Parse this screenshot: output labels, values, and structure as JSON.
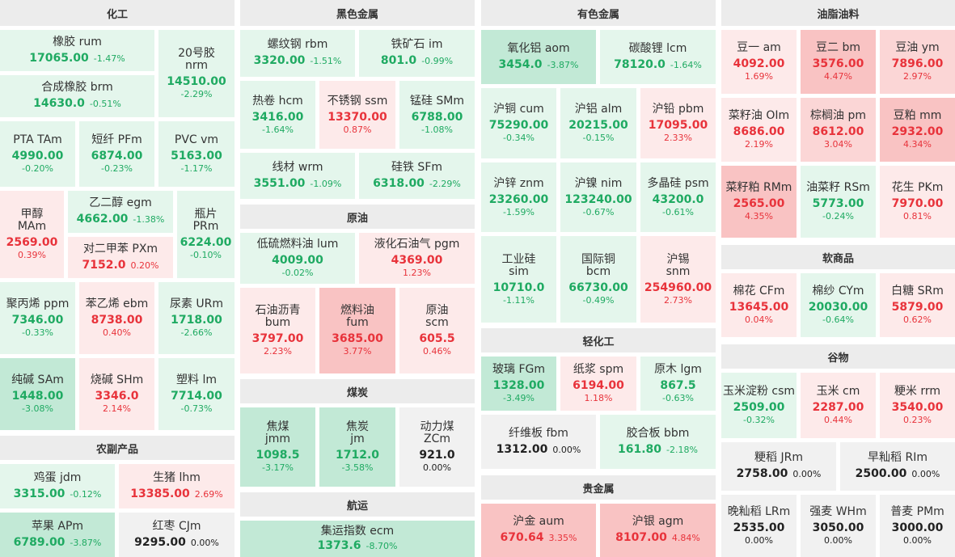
{
  "sections": {
    "chemical": "化工",
    "ferrous": "黑色金属",
    "nonferrous": "有色金属",
    "oils": "油脂油料",
    "crude": "原油",
    "coal": "煤炭",
    "shipping": "航运",
    "agri": "农副产品",
    "light": "轻化工",
    "precious": "贵金属",
    "softs": "软商品",
    "grains": "谷物"
  },
  "tiles": {
    "ru": {
      "name": "橡胶  rum",
      "price": "17065.00",
      "change": "-1.47%"
    },
    "nr": {
      "name": "20号胶",
      "name2": "nrm",
      "price": "14510.00",
      "change": "-2.29%"
    },
    "br": {
      "name": "合成橡胶  brm",
      "price": "14630.0",
      "change": "-0.51%"
    },
    "ta": {
      "name": "PTA  TAm",
      "price": "4990.00",
      "change": "-0.20%"
    },
    "pf": {
      "name": "短纤  PFm",
      "price": "6874.00",
      "change": "-0.23%"
    },
    "v": {
      "name": "PVC  vm",
      "price": "5163.00",
      "change": "-1.17%"
    },
    "ma": {
      "name": "甲醇",
      "name2": "MAm",
      "price": "2569.00",
      "change": "0.39%"
    },
    "eg": {
      "name": "乙二醇  egm",
      "price": "4662.00",
      "change": "-1.38%"
    },
    "pr": {
      "name": "瓶片",
      "name2": "PRm",
      "price": "6224.00",
      "change": "-0.10%"
    },
    "px": {
      "name": "对二甲苯  PXm",
      "price": "7152.0",
      "change": "0.20%"
    },
    "pp": {
      "name": "聚丙烯  ppm",
      "price": "7346.00",
      "change": "-0.33%"
    },
    "eb": {
      "name": "苯乙烯  ebm",
      "price": "8738.00",
      "change": "0.40%"
    },
    "ur": {
      "name": "尿素  URm",
      "price": "1718.00",
      "change": "-2.66%"
    },
    "sa": {
      "name": "纯碱  SAm",
      "price": "1448.00",
      "change": "-3.08%"
    },
    "sh": {
      "name": "烧碱  SHm",
      "price": "3346.0",
      "change": "2.14%"
    },
    "l": {
      "name": "塑料  lm",
      "price": "7714.00",
      "change": "-0.73%"
    },
    "jd": {
      "name": "鸡蛋  jdm",
      "price": "3315.00",
      "change": "-0.12%"
    },
    "lh": {
      "name": "生猪  lhm",
      "price": "13385.00",
      "change": "2.69%"
    },
    "ap": {
      "name": "苹果  APm",
      "price": "6789.00",
      "change": "-3.87%"
    },
    "cj": {
      "name": "红枣  CJm",
      "price": "9295.00",
      "change": "0.00%"
    },
    "rb": {
      "name": "螺纹钢  rbm",
      "price": "3320.00",
      "change": "-1.51%"
    },
    "i": {
      "name": "铁矿石  im",
      "price": "801.0",
      "change": "-0.99%"
    },
    "hc": {
      "name": "热卷  hcm",
      "price": "3416.00",
      "change": "-1.64%"
    },
    "ss": {
      "name": "不锈钢  ssm",
      "price": "13370.00",
      "change": "0.87%"
    },
    "sm": {
      "name": "锰硅  SMm",
      "price": "6788.00",
      "change": "-1.08%"
    },
    "wr": {
      "name": "线材  wrm",
      "price": "3551.00",
      "change": "-1.09%"
    },
    "sf": {
      "name": "硅铁  SFm",
      "price": "6318.00",
      "change": "-2.29%"
    },
    "lu": {
      "name": "低硫燃料油  lum",
      "price": "4009.00",
      "change": "-0.02%"
    },
    "pg": {
      "name": "液化石油气  pgm",
      "price": "4369.00",
      "change": "1.23%"
    },
    "bu": {
      "name": "石油沥青",
      "name2": "bum",
      "price": "3797.00",
      "change": "2.23%"
    },
    "fu": {
      "name": "燃料油",
      "name2": "fum",
      "price": "3685.00",
      "change": "3.77%"
    },
    "sc": {
      "name": "原油",
      "name2": "scm",
      "price": "605.5",
      "change": "0.46%"
    },
    "j": {
      "name": "焦煤",
      "name2": "jmm",
      "price": "1098.5",
      "change": "-3.17%"
    },
    "jj": {
      "name": "焦炭",
      "name2": "jm",
      "price": "1712.0",
      "change": "-3.58%"
    },
    "zc": {
      "name": "动力煤",
      "name2": "ZCm",
      "price": "921.0",
      "change": "0.00%"
    },
    "ec": {
      "name": "集运指数  ecm",
      "price": "1373.6",
      "change": "-8.70%"
    },
    "ao": {
      "name": "氧化铝  aom",
      "price": "3454.0",
      "change": "-3.87%"
    },
    "lc": {
      "name": "碳酸锂  lcm",
      "price": "78120.0",
      "change": "-1.64%"
    },
    "cu": {
      "name": "沪铜  cum",
      "price": "75290.00",
      "change": "-0.34%"
    },
    "al": {
      "name": "沪铝  alm",
      "price": "20215.00",
      "change": "-0.15%"
    },
    "pb": {
      "name": "沪铅  pbm",
      "price": "17095.00",
      "change": "2.33%"
    },
    "zn": {
      "name": "沪锌  znm",
      "price": "23260.00",
      "change": "-1.59%"
    },
    "ni": {
      "name": "沪镍  nim",
      "price": "123240.00",
      "change": "-0.67%"
    },
    "ps": {
      "name": "多晶硅  psm",
      "price": "43200.0",
      "change": "-0.61%"
    },
    "si": {
      "name": "工业硅",
      "name2": "sim",
      "price": "10710.0",
      "change": "-1.11%"
    },
    "bc": {
      "name": "国际铜",
      "name2": "bcm",
      "price": "66730.00",
      "change": "-0.49%"
    },
    "sn": {
      "name": "沪锡",
      "name2": "snm",
      "price": "254960.00",
      "change": "2.73%"
    },
    "fg": {
      "name": "玻璃  FGm",
      "price": "1328.00",
      "change": "-3.49%"
    },
    "sp": {
      "name": "纸浆  spm",
      "price": "6194.00",
      "change": "1.18%"
    },
    "lg": {
      "name": "原木  lgm",
      "price": "867.5",
      "change": "-0.63%"
    },
    "fb": {
      "name": "纤维板  fbm",
      "price": "1312.00",
      "change": "0.00%"
    },
    "bb": {
      "name": "胶合板  bbm",
      "price": "161.80",
      "change": "-2.18%"
    },
    "au": {
      "name": "沪金  aum",
      "price": "670.64",
      "change": "3.35%"
    },
    "ag": {
      "name": "沪银  agm",
      "price": "8107.00",
      "change": "4.84%"
    },
    "a": {
      "name": "豆一  am",
      "price": "4092.00",
      "change": "1.69%"
    },
    "b": {
      "name": "豆二  bm",
      "price": "3576.00",
      "change": "4.47%"
    },
    "y": {
      "name": "豆油  ym",
      "price": "7896.00",
      "change": "2.97%"
    },
    "oi": {
      "name": "菜籽油  OIm",
      "price": "8686.00",
      "change": "2.19%"
    },
    "p": {
      "name": "棕榈油  pm",
      "price": "8612.00",
      "change": "3.04%"
    },
    "m": {
      "name": "豆粕  mm",
      "price": "2932.00",
      "change": "4.34%"
    },
    "rm": {
      "name": "菜籽粕  RMm",
      "price": "2565.00",
      "change": "4.35%"
    },
    "rs": {
      "name": "油菜籽  RSm",
      "price": "5773.00",
      "change": "-0.24%"
    },
    "pk": {
      "name": "花生  PKm",
      "price": "7970.00",
      "change": "0.81%"
    },
    "cf": {
      "name": "棉花  CFm",
      "price": "13645.00",
      "change": "0.04%"
    },
    "cy": {
      "name": "棉纱  CYm",
      "price": "20030.00",
      "change": "-0.64%"
    },
    "sr": {
      "name": "白糖  SRm",
      "price": "5879.00",
      "change": "0.62%"
    },
    "cs": {
      "name": "玉米淀粉  csm",
      "price": "2509.00",
      "change": "-0.32%"
    },
    "c": {
      "name": "玉米  cm",
      "price": "2287.00",
      "change": "0.44%"
    },
    "rr": {
      "name": "粳米  rrm",
      "price": "3540.00",
      "change": "0.23%"
    },
    "jr": {
      "name": "粳稻  JRm",
      "price": "2758.00",
      "change": "0.00%"
    },
    "ri": {
      "name": "早籼稻  RIm",
      "price": "2500.00",
      "change": "0.00%"
    },
    "lr": {
      "name": "晚籼稻  LRm",
      "price": "2535.00",
      "change": "0.00%"
    },
    "wh": {
      "name": "强麦  WHm",
      "price": "3050.00",
      "change": "0.00%"
    },
    "pm": {
      "name": "普麦  PMm",
      "price": "3000.00",
      "change": "0.00%"
    }
  },
  "colors": {
    "up": "#e8333b",
    "down": "#1faa62",
    "flat": "#222222",
    "up_bg_light": "#fdeaea",
    "up_bg_strong": "#f9c3c3",
    "down_bg_light": "#e4f6ec",
    "down_bg_strong": "#c2e9d6",
    "flat_bg": "#f1f1f1",
    "header_bg": "#ececec"
  }
}
